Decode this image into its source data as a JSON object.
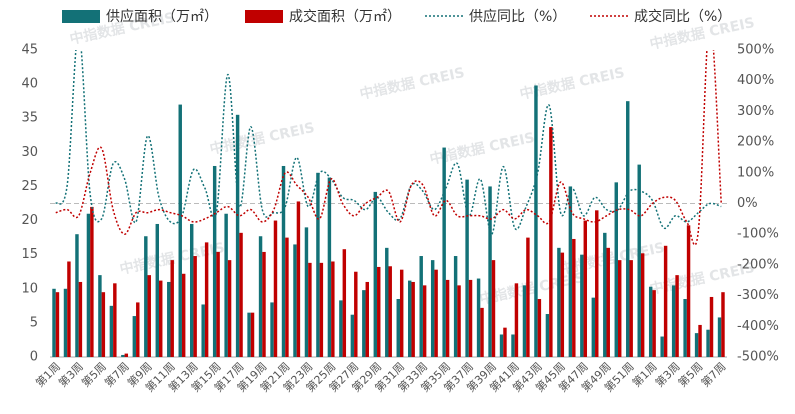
{
  "chart_data": {
    "type": "bar-line",
    "watermark": "中指数据 CREIS",
    "categories": [
      "第1周",
      null,
      "第3周",
      null,
      "第5周",
      null,
      "第7周",
      null,
      "第9周",
      null,
      "第11周",
      null,
      "第13周",
      null,
      "第15周",
      null,
      "第17周",
      null,
      "第19周",
      null,
      "第21周",
      null,
      "第23周",
      null,
      "第25周",
      null,
      "第27周",
      null,
      "第29周",
      null,
      "第31周",
      null,
      "第33周",
      null,
      "第35周",
      null,
      "第37周",
      null,
      "第39周",
      null,
      "第41周",
      null,
      "第43周",
      null,
      "第45周",
      null,
      "第47周",
      null,
      "第49周",
      null,
      "第51周",
      null,
      "第1周",
      null,
      "第3周",
      null,
      "第5周",
      null,
      "第7周"
    ],
    "series": [
      {
        "name": "供应面积（万㎡）",
        "kind": "bar",
        "color": "#137177",
        "values": [
          10,
          10,
          18,
          21,
          12,
          7.5,
          0.3,
          6,
          17.7,
          19.5,
          11,
          37,
          19.5,
          7.7,
          28,
          21,
          35.5,
          6.5,
          17.7,
          8,
          28,
          16.5,
          19,
          27,
          26.3,
          8.3,
          6.2,
          9.8,
          24.2,
          16,
          8.5,
          11.2,
          14.8,
          14.2,
          30.7,
          14.8,
          26,
          11.5,
          25,
          3.3,
          3.3,
          10.5,
          39.8,
          6.3,
          16,
          25,
          15,
          8.7,
          18.2,
          25.6,
          37.5,
          28.2,
          10.3,
          3,
          10.5,
          8.5,
          3.5,
          4,
          5.8
        ]
      },
      {
        "name": "成交面积（万㎡）",
        "kind": "bar",
        "color": "#c00000",
        "values": [
          9.5,
          14,
          11,
          22,
          9.5,
          10.8,
          0.5,
          8,
          12,
          11.2,
          14.2,
          12.2,
          14.8,
          16.8,
          15.4,
          14.2,
          18.2,
          6.5,
          15.4,
          20,
          17.5,
          22.8,
          13.8,
          13.8,
          14,
          15.8,
          12.5,
          11,
          13.2,
          13.3,
          12.8,
          11,
          10.5,
          12.8,
          11.3,
          10.5,
          11.3,
          7.2,
          14.2,
          4.3,
          10.8,
          17.5,
          8.5,
          33.7,
          15.3,
          17.3,
          20,
          21.5,
          16,
          14.2,
          14.2,
          15.2,
          9.8,
          16.3,
          12,
          19.3,
          4.7,
          8.8,
          9.5
        ]
      },
      {
        "name": "供应同比（%）",
        "kind": "line",
        "axis": "y2",
        "color": "#137177",
        "values": [
          0,
          60,
          560,
          30,
          -50,
          130,
          80,
          -60,
          220,
          20,
          -60,
          -40,
          110,
          50,
          -30,
          420,
          -10,
          250,
          -20,
          -30,
          -10,
          150,
          -10,
          100,
          80,
          20,
          10,
          -20,
          20,
          -30,
          -50,
          60,
          40,
          -20,
          50,
          130,
          -40,
          80,
          -100,
          120,
          -80,
          -10,
          100,
          320,
          -30,
          50,
          -40,
          20,
          -20,
          -20,
          40,
          40,
          10,
          -80,
          -40,
          -60,
          -30,
          0,
          -10
        ]
      },
      {
        "name": "成交同比（%）",
        "kind": "line",
        "axis": "y2",
        "color": "#c00000",
        "values": [
          -30,
          -20,
          -40,
          100,
          180,
          -20,
          -100,
          -30,
          -30,
          -20,
          -30,
          -40,
          -60,
          -50,
          -30,
          -10,
          -40,
          -20,
          -60,
          -20,
          100,
          60,
          20,
          -50,
          80,
          0,
          -40,
          0,
          20,
          40,
          -60,
          60,
          60,
          -40,
          10,
          -40,
          -40,
          -40,
          -50,
          -20,
          -50,
          -20,
          -40,
          -60,
          70,
          -30,
          -50,
          -60,
          -40,
          -20,
          -20,
          -40,
          0,
          20,
          10,
          -60,
          -90,
          600,
          0
        ]
      }
    ],
    "ylim": [
      0,
      45
    ],
    "yticks": [
      0,
      5,
      10,
      15,
      20,
      25,
      30,
      35,
      40,
      45
    ],
    "y2lim": [
      -500,
      500
    ],
    "y2ticks": [
      {
        "value": -500,
        "label": "-500%"
      },
      {
        "value": -400,
        "label": "-400%"
      },
      {
        "value": -300,
        "label": "-300%"
      },
      {
        "value": -200,
        "label": "-200%"
      },
      {
        "value": -100,
        "label": "-100%"
      },
      {
        "value": 0,
        "label": "0%"
      },
      {
        "value": 100,
        "label": "100%"
      },
      {
        "value": 200,
        "label": "200%"
      },
      {
        "value": 300,
        "label": "300%"
      },
      {
        "value": 400,
        "label": "400%"
      },
      {
        "value": 500,
        "label": "500%"
      }
    ]
  }
}
